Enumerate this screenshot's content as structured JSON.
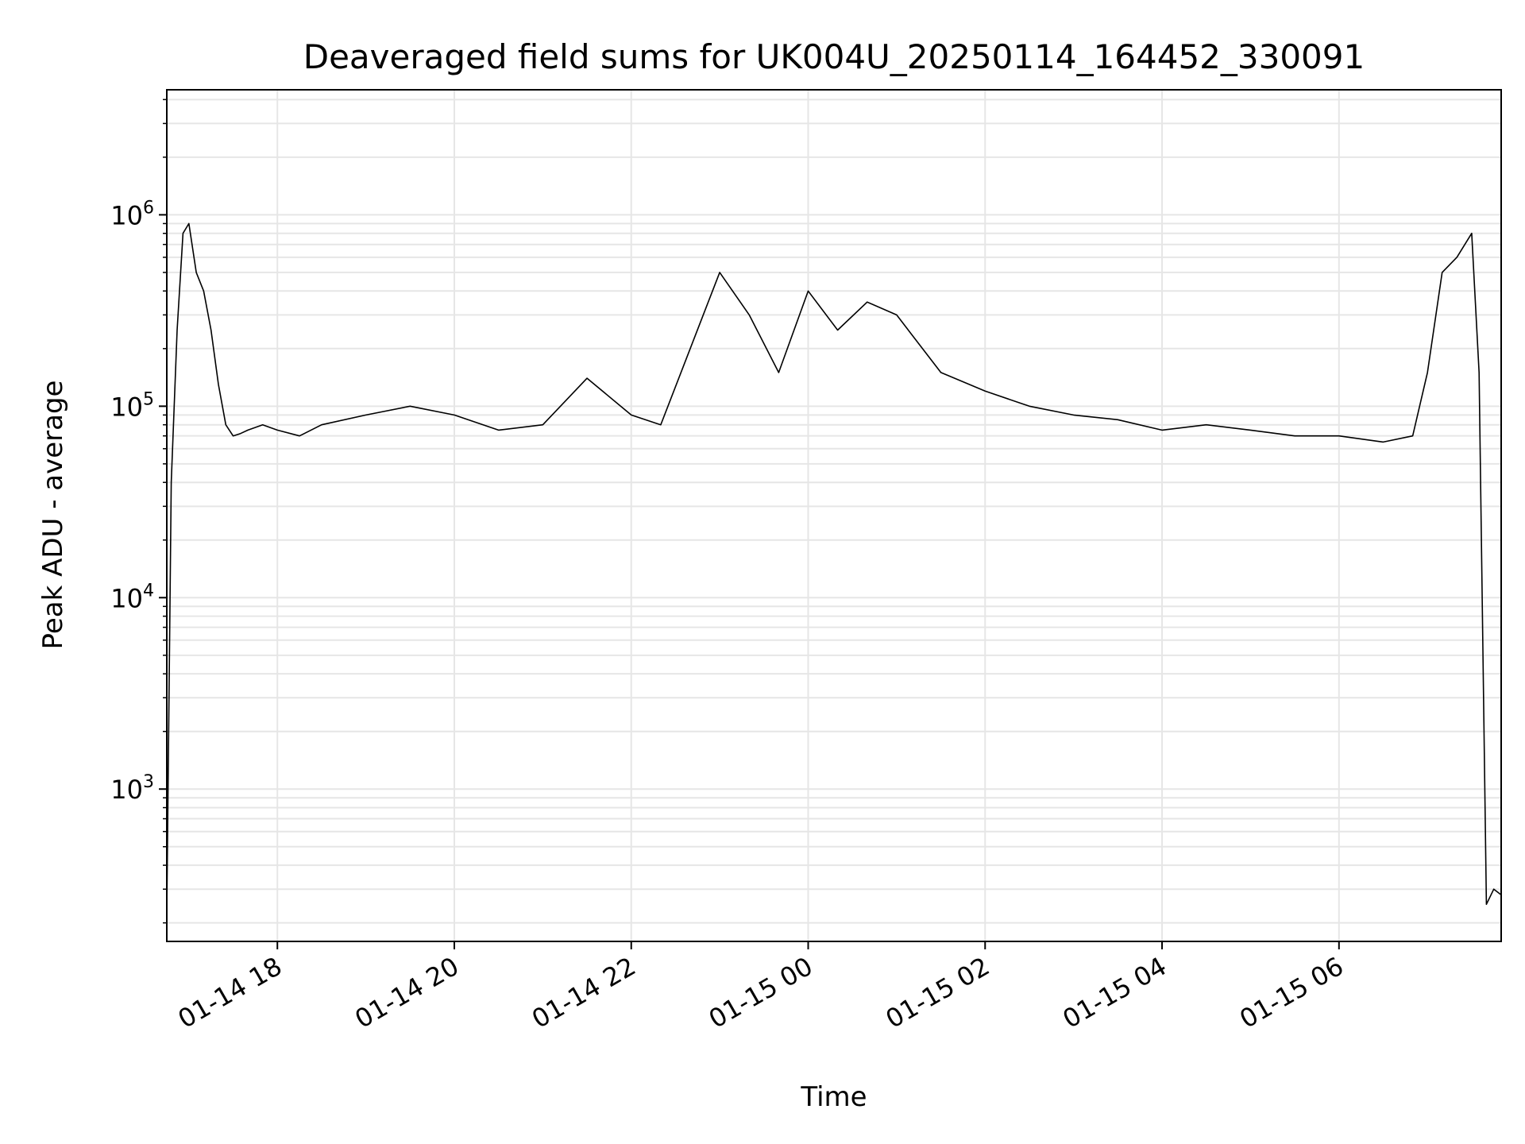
{
  "chart_data": {
    "type": "line",
    "title": "Deaveraged field sums for UK004U_20250114_164452_330091",
    "xlabel": "Time",
    "ylabel": "Peak ADU - average",
    "y_scale": "log",
    "ylim": [
      160,
      4500000
    ],
    "xlim": [
      "2025-01-14T16:45",
      "2025-01-15T07:50"
    ],
    "grid": true,
    "x_ticks": [
      {
        "label": "01-14 18",
        "value": "2025-01-14T18:00"
      },
      {
        "label": "01-14 20",
        "value": "2025-01-14T20:00"
      },
      {
        "label": "01-14 22",
        "value": "2025-01-14T22:00"
      },
      {
        "label": "01-15 00",
        "value": "2025-01-15T00:00"
      },
      {
        "label": "01-15 02",
        "value": "2025-01-15T02:00"
      },
      {
        "label": "01-15 04",
        "value": "2025-01-15T04:00"
      },
      {
        "label": "01-15 06",
        "value": "2025-01-15T06:00"
      }
    ],
    "y_ticks": [
      {
        "base": "10",
        "exp": "3",
        "value": 1000
      },
      {
        "base": "10",
        "exp": "4",
        "value": 10000
      },
      {
        "base": "10",
        "exp": "5",
        "value": 100000
      },
      {
        "base": "10",
        "exp": "6",
        "value": 1000000
      }
    ],
    "series": [
      {
        "color": "#000000",
        "x": [
          "2025-01-14T16:45",
          "2025-01-14T16:48",
          "2025-01-14T16:52",
          "2025-01-14T16:56",
          "2025-01-14T17:00",
          "2025-01-14T17:05",
          "2025-01-14T17:10",
          "2025-01-14T17:15",
          "2025-01-14T17:20",
          "2025-01-14T17:25",
          "2025-01-14T17:30",
          "2025-01-14T17:35",
          "2025-01-14T17:40",
          "2025-01-14T17:50",
          "2025-01-14T18:00",
          "2025-01-14T18:15",
          "2025-01-14T18:30",
          "2025-01-14T19:00",
          "2025-01-14T19:30",
          "2025-01-14T20:00",
          "2025-01-14T20:30",
          "2025-01-14T21:00",
          "2025-01-14T21:30",
          "2025-01-14T22:00",
          "2025-01-14T22:20",
          "2025-01-14T22:40",
          "2025-01-14T23:00",
          "2025-01-14T23:20",
          "2025-01-14T23:40",
          "2025-01-15T00:00",
          "2025-01-15T00:20",
          "2025-01-15T00:40",
          "2025-01-15T01:00",
          "2025-01-15T01:30",
          "2025-01-15T02:00",
          "2025-01-15T02:30",
          "2025-01-15T03:00",
          "2025-01-15T03:30",
          "2025-01-15T04:00",
          "2025-01-15T04:30",
          "2025-01-15T05:00",
          "2025-01-15T05:30",
          "2025-01-15T06:00",
          "2025-01-15T06:30",
          "2025-01-15T06:50",
          "2025-01-15T07:00",
          "2025-01-15T07:10",
          "2025-01-15T07:20",
          "2025-01-15T07:30",
          "2025-01-15T07:35",
          "2025-01-15T07:40",
          "2025-01-15T07:45",
          "2025-01-15T07:50"
        ],
        "y": [
          230,
          40000,
          250000,
          800000,
          900000,
          500000,
          400000,
          250000,
          130000,
          80000,
          70000,
          72000,
          75000,
          80000,
          75000,
          70000,
          80000,
          90000,
          100000,
          90000,
          75000,
          80000,
          140000,
          90000,
          80000,
          200000,
          500000,
          300000,
          150000,
          400000,
          250000,
          350000,
          300000,
          150000,
          120000,
          100000,
          90000,
          85000,
          75000,
          80000,
          75000,
          70000,
          70000,
          65000,
          70000,
          150000,
          500000,
          600000,
          800000,
          150000,
          250,
          300,
          280
        ]
      }
    ]
  }
}
